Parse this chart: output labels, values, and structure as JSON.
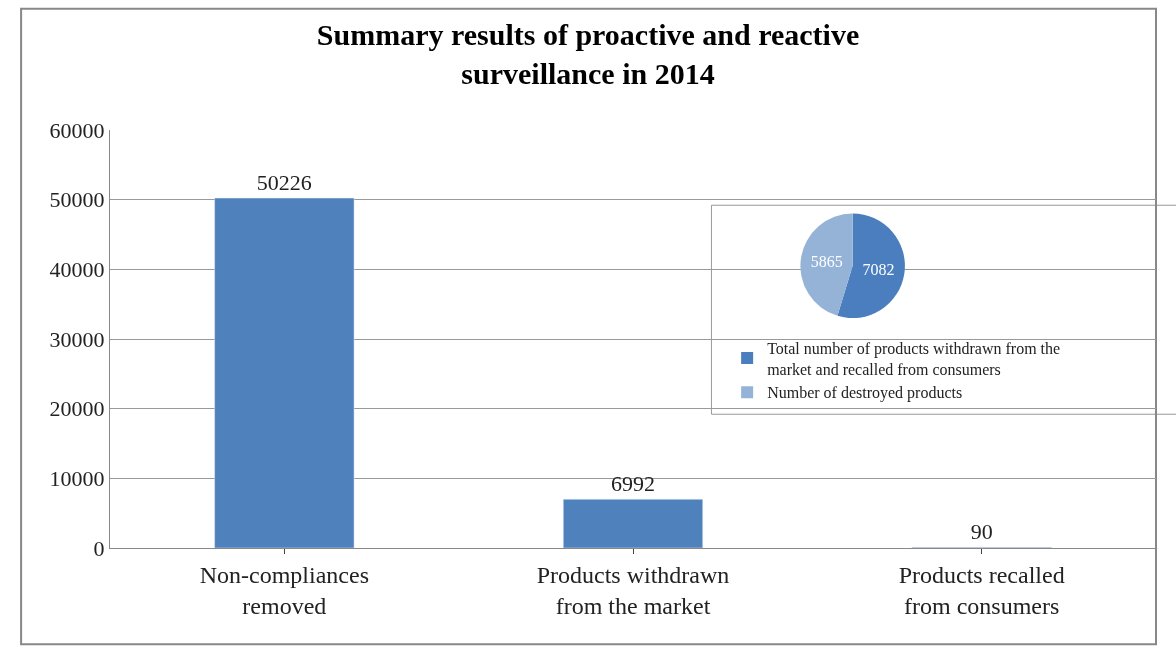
{
  "chart_data": [
    {
      "type": "bar",
      "title": "Summary results of proactive and reactive surveillance in 2014",
      "categories": [
        "Non-compliances removed",
        "Products withdrawn from the market",
        "Products recalled from consumers"
      ],
      "values": [
        50226,
        6992,
        90
      ],
      "color": "#4f81bd",
      "ylim": [
        0,
        60000
      ],
      "yticks": [
        0,
        10000,
        20000,
        30000,
        40000,
        50000,
        60000
      ],
      "grid": "y",
      "data_labels": true
    },
    {
      "type": "pie",
      "categories": [
        "Total number of products withdrawn from the market and recalled from consumers",
        "Number of destroyed products"
      ],
      "values": [
        7082,
        5865
      ],
      "colors": [
        "#4a7ebf",
        "#95b3d7"
      ],
      "data_labels": true,
      "legend": "bottom"
    }
  ]
}
